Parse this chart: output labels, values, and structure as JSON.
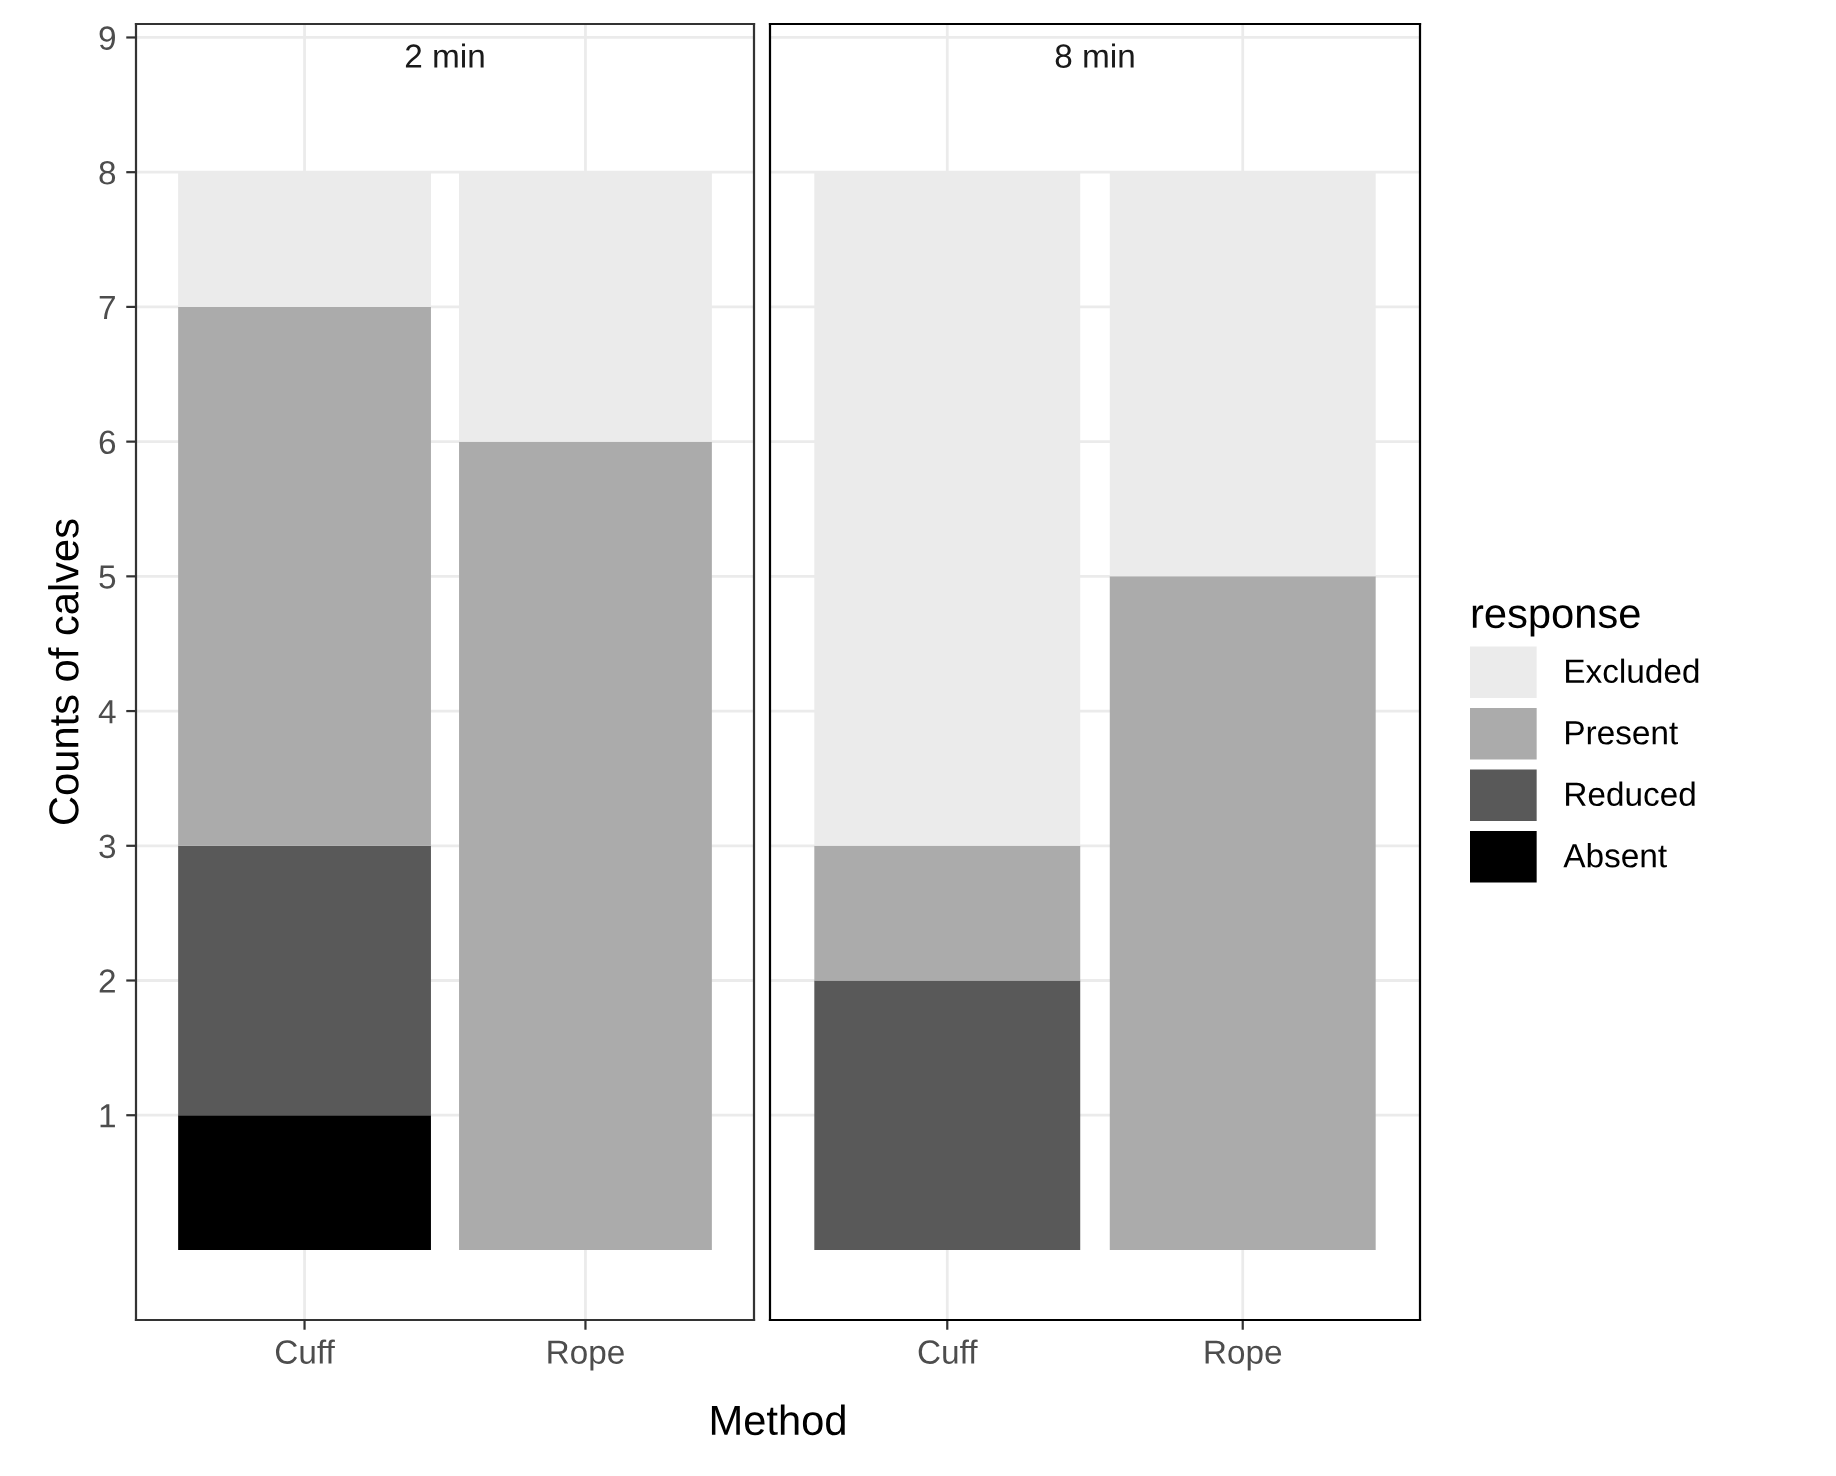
{
  "chart_data": [
    {
      "type": "bar",
      "title": "2 min",
      "ylabel": "Counts of calves",
      "xlabel": "Method",
      "categories": [
        "Cuff",
        "Rope"
      ],
      "stacked": true,
      "legend": "right",
      "legend_title": "response",
      "series": [
        {
          "name": "Absent",
          "color": "#000000",
          "values": [
            1,
            0
          ]
        },
        {
          "name": "Reduced",
          "color": "#595959",
          "values": [
            2,
            0
          ]
        },
        {
          "name": "Present",
          "color": "#ababab",
          "values": [
            4,
            6
          ]
        },
        {
          "name": "Excluded",
          "color": "#ebebeb",
          "values": [
            1,
            2
          ]
        }
      ],
      "ylim": [
        -0.52,
        9.1
      ],
      "yticks": [
        1,
        2,
        3,
        4,
        5,
        6,
        7,
        8,
        9
      ],
      "grid": true
    },
    {
      "type": "bar",
      "title": "8 min",
      "categories": [
        "Cuff",
        "Rope"
      ],
      "stacked": true,
      "tick_labels": "x",
      "series": [
        {
          "name": "Absent",
          "color": "#000000",
          "values": [
            0,
            0
          ]
        },
        {
          "name": "Reduced",
          "color": "#595959",
          "values": [
            2,
            0
          ]
        },
        {
          "name": "Present",
          "color": "#ababab",
          "values": [
            1,
            5
          ]
        },
        {
          "name": "Excluded",
          "color": "#ebebeb",
          "values": [
            5,
            3
          ]
        }
      ],
      "ylim": [
        -0.52,
        9.1
      ],
      "yticks": [
        1,
        2,
        3,
        4,
        5,
        6,
        7,
        8,
        9
      ],
      "grid": true
    }
  ]
}
